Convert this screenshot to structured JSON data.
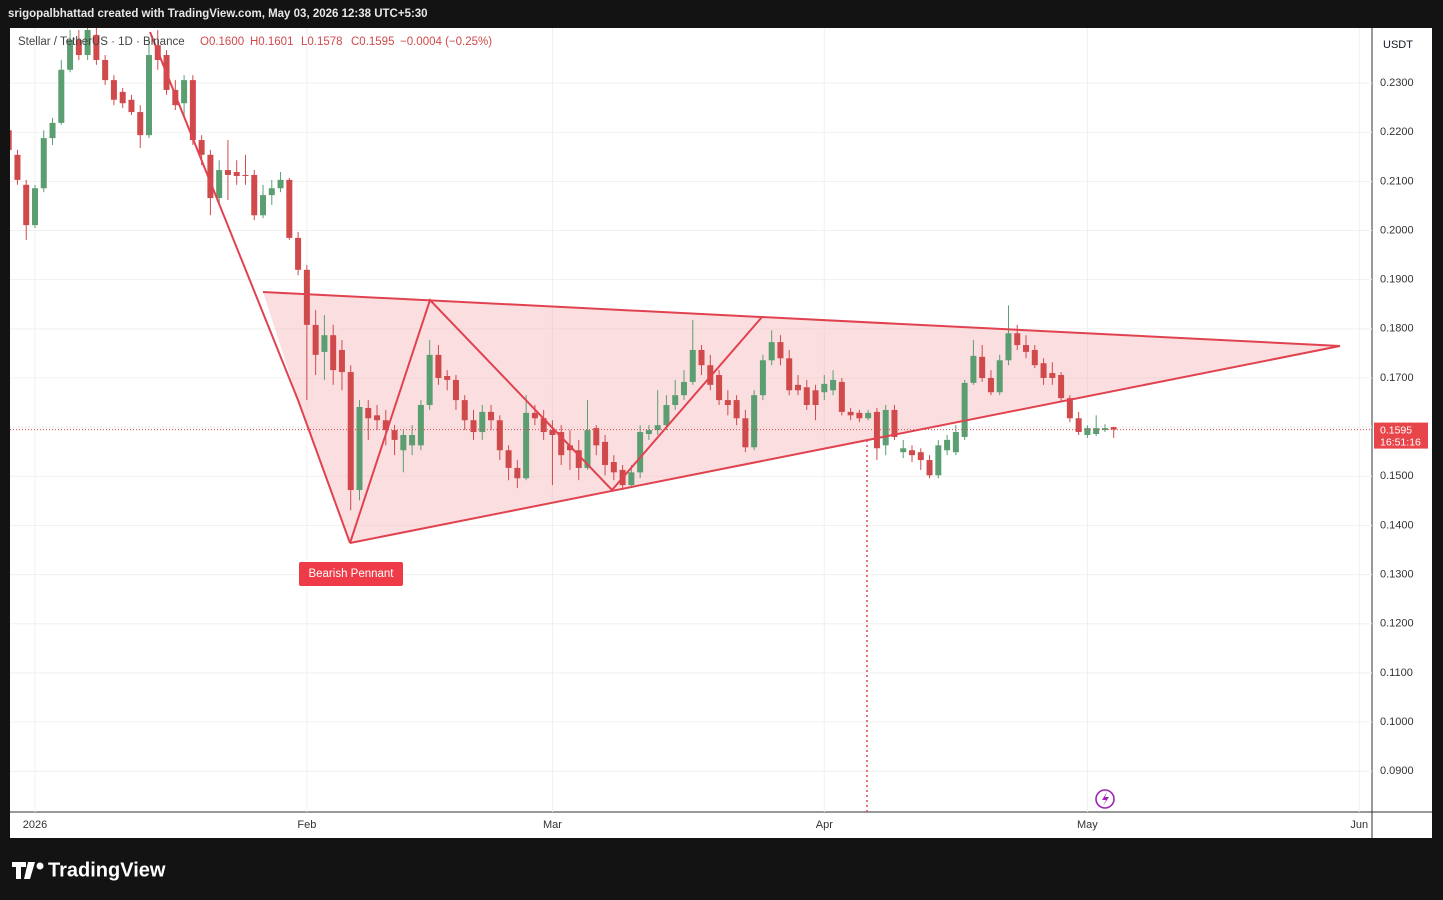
{
  "header": "srigopalbhattad created with TradingView.com, May 03, 2026 12:38 UTC+5:30",
  "brand": "TradingView",
  "chart_data": {
    "type": "candlestick",
    "title": "Stellar / TetherUS · 1D · Binance",
    "legend_values": [
      "O0.1600",
      "H0.1601",
      "L0.1578",
      "C0.1595",
      "−0.0004 (−0.25%)"
    ],
    "y_axis_label": "USDT",
    "countdown": "16:51:16",
    "annotation": "Bearish Pennant",
    "up_color": "#5b9e72",
    "down_color": "#d0494b",
    "grid": true,
    "xlim": [
      -2.85,
      152.45
    ],
    "xticks": [
      {
        "value": 0,
        "label": "2026"
      },
      {
        "value": 31,
        "label": "Feb"
      },
      {
        "value": 59,
        "label": "Mar"
      },
      {
        "value": 90,
        "label": "Apr"
      },
      {
        "value": 120,
        "label": "May"
      },
      {
        "value": 151,
        "label": "Jun"
      }
    ],
    "ylim": [
      0.0817,
      0.2412
    ],
    "yticks": [
      {
        "value": 0.09,
        "label": "0.0900"
      },
      {
        "value": 0.1,
        "label": "0.1000"
      },
      {
        "value": 0.11,
        "label": "0.1100"
      },
      {
        "value": 0.12,
        "label": "0.1200"
      },
      {
        "value": 0.13,
        "label": "0.1300"
      },
      {
        "value": 0.14,
        "label": "0.1400"
      },
      {
        "value": 0.15,
        "label": "0.1500"
      },
      {
        "value": 0.16,
        "label": "0.1600"
      },
      {
        "value": 0.17,
        "label": "0.1700"
      },
      {
        "value": 0.18,
        "label": "0.1800"
      },
      {
        "value": 0.19,
        "label": "0.1900"
      },
      {
        "value": 0.2,
        "label": "0.2000"
      },
      {
        "value": 0.21,
        "label": "0.2100"
      },
      {
        "value": 0.22,
        "label": "0.2200"
      },
      {
        "value": 0.23,
        "label": "0.2300"
      }
    ],
    "x": [
      -3,
      -2,
      -1,
      0,
      1,
      2,
      3,
      4,
      5,
      6,
      7,
      8,
      9,
      10,
      11,
      12,
      13,
      14,
      15,
      16,
      17,
      18,
      19,
      20,
      21,
      22,
      23,
      24,
      25,
      26,
      27,
      28,
      29,
      30,
      31,
      32,
      33,
      34,
      35,
      36,
      37,
      38,
      39,
      40,
      41,
      42,
      43,
      44,
      45,
      46,
      47,
      48,
      49,
      50,
      51,
      52,
      53,
      54,
      55,
      56,
      57,
      58,
      59,
      60,
      61,
      62,
      63,
      64,
      65,
      66,
      67,
      68,
      69,
      70,
      71,
      72,
      73,
      74,
      75,
      76,
      77,
      78,
      79,
      80,
      81,
      82,
      83,
      84,
      85,
      86,
      87,
      88,
      89,
      90,
      91,
      92,
      93,
      94,
      95,
      96,
      97,
      98,
      99,
      100,
      101,
      102,
      103,
      104,
      105,
      106,
      107,
      108,
      109,
      110,
      111,
      112,
      113,
      114,
      115,
      116,
      117,
      118,
      119,
      120,
      121,
      122,
      123
    ],
    "open": [
      0.2204,
      0.2154,
      0.2093,
      0.2011,
      0.2086,
      0.2188,
      0.2219,
      0.2327,
      0.2388,
      0.2357,
      0.2398,
      0.2347,
      0.2306,
      0.2282,
      0.2266,
      0.2241,
      0.2194,
      0.2377,
      0.2357,
      0.2286,
      0.2259,
      0.2306,
      0.2184,
      0.2154,
      0.2066,
      0.2123,
      0.2119,
      0.2113,
      0.2113,
      0.2031,
      0.2072,
      0.2086,
      0.2103,
      0.1985,
      0.192,
      0.1808,
      0.1753,
      0.1787,
      0.1757,
      0.1712,
      0.1472,
      0.1639,
      0.1624,
      0.1614,
      0.1594,
      0.1553,
      0.1563,
      0.1563,
      0.1645,
      0.1747,
      0.1704,
      0.1696,
      0.1655,
      0.1614,
      0.159,
      0.1631,
      0.1614,
      0.1553,
      0.1517,
      0.1496,
      0.1629,
      0.1618,
      0.1594,
      0.159,
      0.1563,
      0.1553,
      0.1517,
      0.1598,
      0.157,
      0.1529,
      0.1513,
      0.1482,
      0.1508,
      0.1586,
      0.1594,
      0.1604,
      0.1645,
      0.1665,
      0.1692,
      0.1757,
      0.1726,
      0.1706,
      0.1655,
      0.1655,
      0.1618,
      0.1559,
      0.1665,
      0.1736,
      0.1773,
      0.174,
      0.1686,
      0.1681,
      0.1675,
      0.1671,
      0.1675,
      0.1692,
      0.1631,
      0.1629,
      0.1618,
      0.1631,
      0.1563,
      0.1635,
      0.1549,
      0.1553,
      0.1549,
      0.1533,
      0.1502,
      0.1553,
      0.1549,
      0.158,
      0.169,
      0.1743,
      0.17,
      0.1671,
      0.1736,
      0.1791,
      0.1767,
      0.1757,
      0.173,
      0.171,
      0.1706,
      0.1659,
      0.1618,
      0.1584,
      0.1586,
      0.1594,
      0.16
    ],
    "high": [
      0.2215,
      0.2164,
      0.2103,
      0.2093,
      0.2204,
      0.2229,
      0.2347,
      0.2408,
      0.2408,
      0.2412,
      0.2412,
      0.2357,
      0.2316,
      0.229,
      0.2276,
      0.2255,
      0.2388,
      0.2408,
      0.2367,
      0.2306,
      0.2316,
      0.2316,
      0.2194,
      0.2164,
      0.2143,
      0.2184,
      0.2143,
      0.2154,
      0.2123,
      0.2093,
      0.2103,
      0.2119,
      0.2107,
      0.1997,
      0.193,
      0.1838,
      0.1828,
      0.1808,
      0.1777,
      0.1726,
      0.1655,
      0.1655,
      0.1645,
      0.1635,
      0.1604,
      0.1594,
      0.1604,
      0.1655,
      0.1777,
      0.1767,
      0.1716,
      0.1706,
      0.1665,
      0.1635,
      0.1645,
      0.1645,
      0.1624,
      0.1563,
      0.1533,
      0.1665,
      0.1645,
      0.1635,
      0.1614,
      0.1604,
      0.1594,
      0.1574,
      0.1655,
      0.1604,
      0.1584,
      0.1543,
      0.1523,
      0.1523,
      0.1604,
      0.1604,
      0.1675,
      0.1665,
      0.1696,
      0.1716,
      0.1818,
      0.1767,
      0.1747,
      0.1716,
      0.1675,
      0.1665,
      0.1635,
      0.1675,
      0.1747,
      0.1797,
      0.1787,
      0.1757,
      0.1706,
      0.1696,
      0.1686,
      0.1706,
      0.1716,
      0.17,
      0.1639,
      0.1635,
      0.1635,
      0.1639,
      0.1645,
      0.1645,
      0.1574,
      0.1563,
      0.1557,
      0.1543,
      0.1574,
      0.1584,
      0.1604,
      0.1696,
      0.1777,
      0.1767,
      0.1716,
      0.1747,
      0.1848,
      0.1808,
      0.1787,
      0.1767,
      0.174,
      0.1732,
      0.1712,
      0.1665,
      0.1631,
      0.1604,
      0.1624,
      0.1606,
      0.1601
    ],
    "low": [
      0.2154,
      0.2093,
      0.1981,
      0.2005,
      0.2078,
      0.2174,
      0.2215,
      0.2322,
      0.2347,
      0.2347,
      0.2337,
      0.2296,
      0.2255,
      0.2249,
      0.2235,
      0.2168,
      0.2188,
      0.2327,
      0.2276,
      0.2245,
      0.2235,
      0.2174,
      0.2133,
      0.2031,
      0.2056,
      0.2062,
      0.2093,
      0.2093,
      0.2021,
      0.2025,
      0.2052,
      0.2078,
      0.1981,
      0.1909,
      0.1655,
      0.1706,
      0.1696,
      0.1686,
      0.1675,
      0.1431,
      0.1451,
      0.1574,
      0.1594,
      0.1563,
      0.1543,
      0.1508,
      0.1543,
      0.1553,
      0.1635,
      0.1686,
      0.1675,
      0.1635,
      0.1594,
      0.1574,
      0.1574,
      0.1594,
      0.1533,
      0.1492,
      0.1476,
      0.1492,
      0.1604,
      0.1574,
      0.1482,
      0.1523,
      0.1513,
      0.1492,
      0.1513,
      0.1543,
      0.1502,
      0.1492,
      0.1472,
      0.1476,
      0.1496,
      0.1574,
      0.1584,
      0.1594,
      0.1635,
      0.1655,
      0.1686,
      0.1706,
      0.1675,
      0.1645,
      0.1624,
      0.1604,
      0.1549,
      0.1553,
      0.1655,
      0.1726,
      0.1726,
      0.1665,
      0.1665,
      0.1635,
      0.1614,
      0.1655,
      0.1665,
      0.1624,
      0.1614,
      0.161,
      0.1614,
      0.1533,
      0.1543,
      0.1574,
      0.1537,
      0.1529,
      0.1513,
      0.1496,
      0.1496,
      0.1543,
      0.1543,
      0.1574,
      0.1686,
      0.1692,
      0.1665,
      0.1665,
      0.1726,
      0.1757,
      0.174,
      0.172,
      0.1686,
      0.1686,
      0.1651,
      0.161,
      0.1584,
      0.1578,
      0.1582,
      0.159,
      0.1578
    ],
    "close": [
      0.2164,
      0.2103,
      0.2011,
      0.2086,
      0.2188,
      0.2219,
      0.2327,
      0.2388,
      0.2357,
      0.2408,
      0.2347,
      0.2306,
      0.2266,
      0.2259,
      0.2241,
      0.2194,
      0.2357,
      0.2347,
      0.2286,
      0.2255,
      0.2306,
      0.2184,
      0.2154,
      0.2066,
      0.2123,
      0.2113,
      0.2111,
      0.2111,
      0.2031,
      0.2072,
      0.2086,
      0.2103,
      0.1985,
      0.192,
      0.1808,
      0.1747,
      0.1787,
      0.1716,
      0.1712,
      0.1472,
      0.1641,
      0.1618,
      0.1614,
      0.1594,
      0.1574,
      0.1584,
      0.1584,
      0.1645,
      0.1747,
      0.17,
      0.1696,
      0.1655,
      0.1614,
      0.159,
      0.1631,
      0.1614,
      0.1553,
      0.1517,
      0.1496,
      0.1629,
      0.1618,
      0.159,
      0.1584,
      0.1543,
      0.1553,
      0.1517,
      0.1594,
      0.1563,
      0.1523,
      0.1508,
      0.1482,
      0.1508,
      0.159,
      0.1594,
      0.1604,
      0.1645,
      0.1665,
      0.1692,
      0.1757,
      0.1726,
      0.1686,
      0.1655,
      0.1645,
      0.1618,
      0.1559,
      0.1665,
      0.1736,
      0.1773,
      0.174,
      0.1675,
      0.1675,
      0.1645,
      0.1645,
      0.1688,
      0.1696,
      0.1631,
      0.1624,
      0.1618,
      0.1629,
      0.1557,
      0.1635,
      0.158,
      0.1557,
      0.1543,
      0.1533,
      0.1502,
      0.1563,
      0.1574,
      0.159,
      0.169,
      0.1745,
      0.17,
      0.1671,
      0.1736,
      0.1791,
      0.1767,
      0.1753,
      0.1726,
      0.17,
      0.17,
      0.1659,
      0.1618,
      0.159,
      0.1598,
      0.1598,
      0.1598,
      0.1595
    ]
  }
}
